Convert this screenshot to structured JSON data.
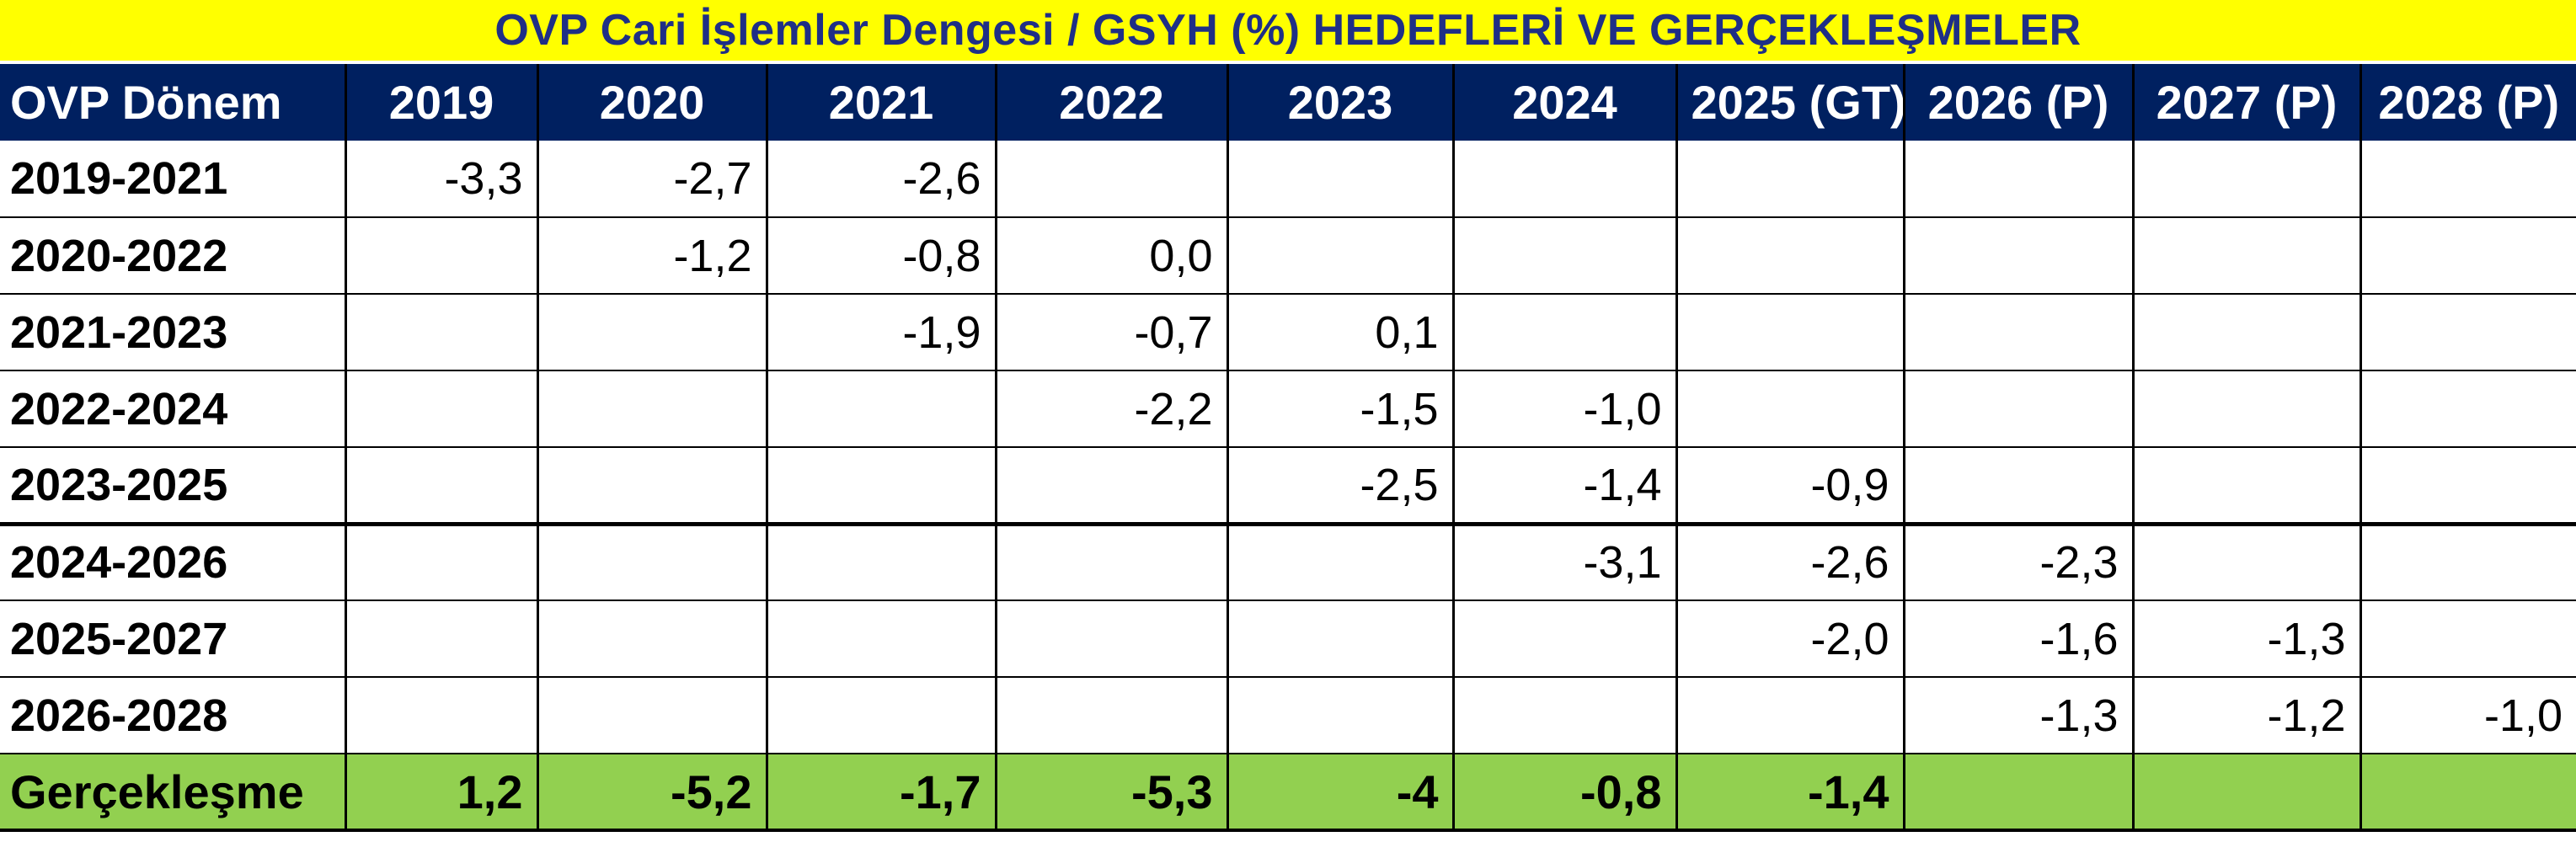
{
  "title": "OVP Cari İşlemler Dengesi / GSYH (%) HEDEFLERİ VE GERÇEKLEŞMELER",
  "header": [
    "OVP Dönem",
    "2019",
    "2020",
    "2021",
    "2022",
    "2023",
    "2024",
    "2025 (GT)",
    "2026 (P)",
    "2027 (P)",
    "2028 (P)"
  ],
  "rows": [
    {
      "label": "2019-2021",
      "cells": [
        "-3,3",
        "-2,7",
        "-2,6",
        "",
        "",
        "",
        "",
        "",
        "",
        ""
      ]
    },
    {
      "label": "2020-2022",
      "cells": [
        "",
        "-1,2",
        "-0,8",
        "0,0",
        "",
        "",
        "",
        "",
        "",
        ""
      ]
    },
    {
      "label": "2021-2023",
      "cells": [
        "",
        "",
        "-1,9",
        "-0,7",
        "0,1",
        "",
        "",
        "",
        "",
        ""
      ]
    },
    {
      "label": "2022-2024",
      "cells": [
        "",
        "",
        "",
        "-2,2",
        "-1,5",
        "-1,0",
        "",
        "",
        "",
        ""
      ]
    },
    {
      "label": "2023-2025",
      "cells": [
        "",
        "",
        "",
        "",
        "-2,5",
        "-1,4",
        "-0,9",
        "",
        "",
        ""
      ]
    },
    {
      "label": "2024-2026",
      "cells": [
        "",
        "",
        "",
        "",
        "",
        "-3,1",
        "-2,6",
        "-2,3",
        "",
        ""
      ]
    },
    {
      "label": "2025-2027",
      "cells": [
        "",
        "",
        "",
        "",
        "",
        "",
        "-2,0",
        "-1,6",
        "-1,3",
        ""
      ]
    },
    {
      "label": "2026-2028",
      "cells": [
        "",
        "",
        "",
        "",
        "",
        "",
        "",
        "-1,3",
        "-1,2",
        "-1,0"
      ]
    }
  ],
  "actual": {
    "label": "Gerçekleşme",
    "cells": [
      "1,2",
      "-5,2",
      "-1,7",
      "-5,3",
      "-4",
      "-0,8",
      "-1,4",
      "",
      "",
      ""
    ]
  },
  "colors": {
    "title_bg": "#ffff00",
    "title_text": "#1f2f86",
    "header_bg": "#002060",
    "header_text": "#ffffff",
    "actual_bg": "#92d050"
  }
}
